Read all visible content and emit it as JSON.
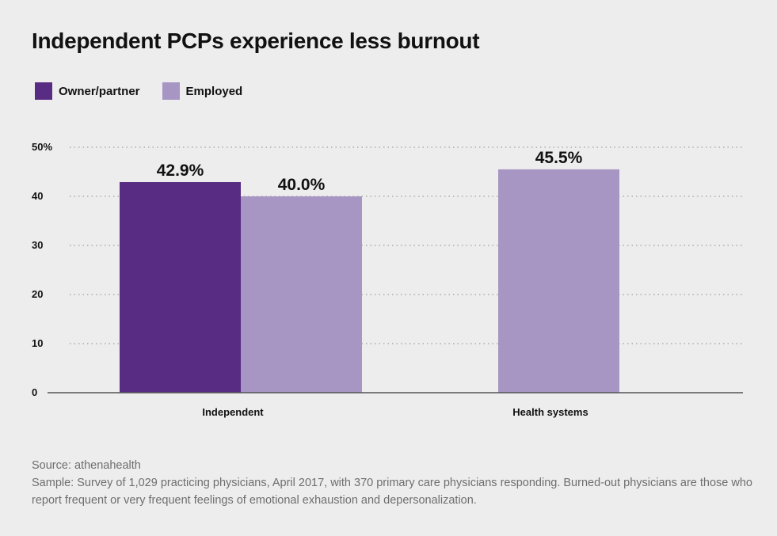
{
  "colors": {
    "owner": "#582c83",
    "employed": "#a795c3",
    "grid": "#8a8a8a",
    "axis": "#555555"
  },
  "legend": {
    "owner_label": "Owner/partner",
    "employed_label": "Employed"
  },
  "footer": {
    "source": "Source: athenahealth",
    "sample": "Sample: Survey of 1,029 practicing physicians, April 2017, with 370 primary care physicians responding. Burned-out physicians are those who report frequent or very frequent feelings of emotional exhaustion and depersonalization."
  },
  "chart_data": {
    "type": "bar",
    "title": "Independent PCPs experience less burnout",
    "categories": [
      "Independent",
      "Health systems"
    ],
    "series": [
      {
        "name": "Owner/partner",
        "color": "#582c83",
        "values": [
          42.9,
          null
        ],
        "labels": [
          "42.9%",
          null
        ]
      },
      {
        "name": "Employed",
        "color": "#a795c3",
        "values": [
          40.0,
          45.5
        ],
        "labels": [
          "40.0%",
          "45.5%"
        ]
      }
    ],
    "yticks": [
      "50%",
      "40",
      "30",
      "20",
      "10",
      "0"
    ],
    "ytick_values": [
      50,
      40,
      30,
      20,
      10,
      0
    ],
    "ylim": [
      0,
      50
    ],
    "grid": true,
    "legend_position": "top-left"
  }
}
